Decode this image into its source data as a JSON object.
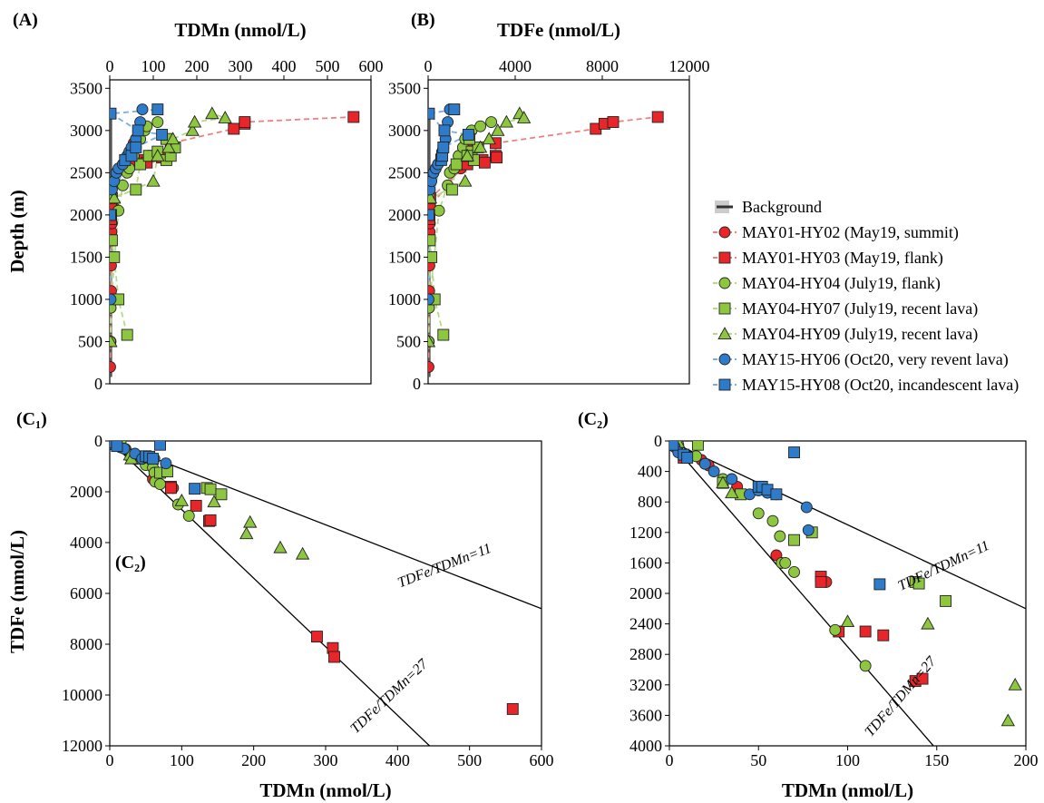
{
  "legend": {
    "background_label": "Background",
    "entries": [
      {
        "label": "MAY01-HY02 (May19, summit)",
        "color": "#e8262a",
        "line": "#f08080",
        "marker": "circle"
      },
      {
        "label": "MAY01-HY03 (May19, flank)",
        "color": "#e8262a",
        "line": "#f08080",
        "marker": "square"
      },
      {
        "label": "MAY04-HY04 (July19, flank)",
        "color": "#8dc63f",
        "line": "#b5d98a",
        "marker": "circle"
      },
      {
        "label": "MAY04-HY07 (July19, recent lava)",
        "color": "#8dc63f",
        "line": "#b5d98a",
        "marker": "square"
      },
      {
        "label": "MAY04-HY09 (July19, recent lava)",
        "color": "#8dc63f",
        "line": "#b5d98a",
        "marker": "triangle"
      },
      {
        "label": "MAY15-HY06 (Oct20, very revent lava)",
        "color": "#2e7bc9",
        "line": "#7aaee0",
        "marker": "circle"
      },
      {
        "label": "MAY15-HY08 (Oct20, incandescent lava)",
        "color": "#2e7bc9",
        "line": "#7aaee0",
        "marker": "square"
      }
    ]
  },
  "chart_data": [
    {
      "type": "scatter",
      "panel_label": "(A)",
      "xlabel": "TDMn (nmol/L)",
      "ylabel": "Depth (m)",
      "xlim": [
        0,
        600
      ],
      "ylim": [
        3600,
        0
      ],
      "xticks": [
        0,
        100,
        200,
        300,
        400,
        500,
        600
      ],
      "yticks": [
        0,
        500,
        1000,
        1500,
        2000,
        2500,
        3000,
        3500
      ],
      "series": [
        {
          "name": "MAY01-HY02 (May19, summit)",
          "x": [
            1,
            2,
            2,
            3,
            3,
            4,
            5,
            8,
            25,
            30,
            55,
            60
          ],
          "y": [
            200,
            500,
            900,
            1100,
            1400,
            1800,
            1900,
            2100,
            2550,
            2600,
            2850,
            2900
          ]
        },
        {
          "name": "MAY01-HY03 (May19, flank)",
          "x": [
            1,
            2,
            3,
            3,
            5,
            50,
            80,
            85,
            100,
            120,
            140,
            285,
            310,
            310,
            560
          ],
          "y": [
            1000,
            1700,
            1950,
            2100,
            2200,
            2600,
            2650,
            2620,
            2700,
            2680,
            2850,
            3020,
            3080,
            3100,
            3160
          ]
        },
        {
          "name": "MAY04-HY04 (July19, flank)",
          "x": [
            1,
            2,
            20,
            30,
            40,
            45,
            55,
            60,
            70,
            80,
            85,
            110
          ],
          "y": [
            500,
            900,
            2050,
            2350,
            2500,
            2550,
            2700,
            2800,
            2900,
            3000,
            3050,
            3100
          ]
        },
        {
          "name": "MAY04-HY07 (July19, recent lava)",
          "x": [
            40,
            20,
            10,
            5,
            3,
            2,
            60,
            70,
            90,
            110,
            130,
            140,
            150,
            130
          ],
          "y": [
            580,
            1000,
            1500,
            1700,
            2000,
            2200,
            2300,
            2600,
            2700,
            2750,
            2650,
            2700,
            2800,
            2900
          ]
        },
        {
          "name": "MAY04-HY09 (July19, recent lava)",
          "x": [
            2,
            10,
            100,
            110,
            135,
            145,
            190,
            195,
            235,
            265
          ],
          "y": [
            500,
            2200,
            2400,
            2700,
            2800,
            2900,
            3000,
            3100,
            3200,
            3150
          ]
        },
        {
          "name": "MAY15-HY06 (Oct20, very revent lava)",
          "x": [
            2,
            3,
            5,
            10,
            15,
            20,
            30,
            40,
            45,
            50,
            60,
            70,
            75
          ],
          "y": [
            1000,
            2000,
            2300,
            2400,
            2500,
            2550,
            2600,
            2700,
            2750,
            2800,
            2900,
            3100,
            3250
          ]
        },
        {
          "name": "MAY15-HY08 (Oct20, incandescent lava)",
          "x": [
            1,
            2,
            35,
            50,
            60,
            65,
            120,
            110
          ],
          "y": [
            2000,
            3200,
            2650,
            2700,
            2800,
            3000,
            2950,
            3250
          ]
        }
      ]
    },
    {
      "type": "scatter",
      "panel_label": "(B)",
      "xlabel": "TDFe (nmol/L)",
      "ylabel": "",
      "xlim": [
        0,
        12000
      ],
      "ylim": [
        3600,
        0
      ],
      "xticks": [
        0,
        4000,
        8000,
        12000
      ],
      "yticks": [
        0,
        500,
        1000,
        1500,
        2000,
        2500,
        3000,
        3500
      ],
      "series": [
        {
          "name": "MAY01-HY02 (May19, summit)",
          "x": [
            20,
            30,
            40,
            50,
            60,
            70,
            80,
            100,
            1500,
            1600,
            1800,
            1850
          ],
          "y": [
            200,
            500,
            900,
            1100,
            1400,
            1800,
            1900,
            2100,
            2550,
            2600,
            2850,
            2900
          ]
        },
        {
          "name": "MAY01-HY03 (May19, flank)",
          "x": [
            20,
            40,
            60,
            80,
            100,
            1800,
            2500,
            2600,
            3100,
            3150,
            3100,
            7700,
            8100,
            8500,
            10550
          ],
          "y": [
            1000,
            1700,
            1950,
            2100,
            2200,
            2600,
            2650,
            2620,
            2700,
            2680,
            2850,
            3020,
            3080,
            3100,
            3160
          ]
        },
        {
          "name": "MAY04-HY04 (July19, flank)",
          "x": [
            20,
            40,
            500,
            900,
            1000,
            1200,
            1400,
            1600,
            1700,
            2000,
            2400,
            2900
          ],
          "y": [
            500,
            900,
            2050,
            2350,
            2500,
            2550,
            2700,
            2800,
            2900,
            3000,
            3050,
            3100
          ]
        },
        {
          "name": "MAY04-HY07 (July19, recent lava)",
          "x": [
            700,
            300,
            150,
            80,
            50,
            30,
            1100,
            1300,
            1900,
            2000,
            2100,
            1800,
            2300,
            1900
          ],
          "y": [
            580,
            1000,
            1500,
            1700,
            2000,
            2200,
            2300,
            2600,
            2700,
            2750,
            2650,
            2700,
            2800,
            2900
          ]
        },
        {
          "name": "MAY04-HY09 (July19, recent lava)",
          "x": [
            20,
            100,
            1700,
            1800,
            2400,
            2800,
            3200,
            3600,
            4200,
            4400
          ],
          "y": [
            500,
            2200,
            2400,
            2700,
            2800,
            2900,
            3000,
            3100,
            3200,
            3150
          ]
        },
        {
          "name": "MAY15-HY06 (Oct20, very revent lava)",
          "x": [
            20,
            40,
            80,
            150,
            250,
            350,
            450,
            600,
            650,
            700,
            800,
            900,
            1000
          ],
          "y": [
            1000,
            2000,
            2300,
            2400,
            2500,
            2550,
            2600,
            2700,
            2750,
            2800,
            2900,
            3100,
            3250
          ]
        },
        {
          "name": "MAY15-HY08 (Oct20, incandescent lava)",
          "x": [
            20,
            40,
            600,
            650,
            700,
            750,
            1850,
            1200
          ],
          "y": [
            2000,
            3200,
            2650,
            2700,
            2800,
            3000,
            2950,
            3250
          ]
        }
      ]
    },
    {
      "type": "scatter",
      "panel_label": "(C₁)",
      "inset_label": "(C₂)",
      "xlabel": "TDMn (nmol/L)",
      "ylabel": "TDFe (nmol/L)",
      "xlim": [
        0,
        600
      ],
      "ylim": [
        0,
        12000
      ],
      "xticks": [
        0,
        100,
        200,
        300,
        400,
        500,
        600
      ],
      "yticks": [
        0,
        2000,
        4000,
        6000,
        8000,
        10000,
        12000
      ],
      "reference_lines": [
        {
          "label": "TDFe/TDMn=27",
          "slope": 27
        },
        {
          "label": "TDFe/TDMn=11",
          "slope": 11
        }
      ],
      "inset_box": {
        "x": [
          0,
          200
        ],
        "y": [
          0,
          4000
        ]
      },
      "series": [
        {
          "name": "MAY01-HY02 (May19, summit)",
          "x": [
            1,
            3,
            5,
            15,
            20,
            22,
            35,
            55,
            60,
            85,
            88
          ],
          "y": [
            20,
            60,
            100,
            250,
            300,
            320,
            600,
            700,
            1500,
            1800,
            1850
          ]
        },
        {
          "name": "MAY01-HY03 (May19, flank)",
          "x": [
            2,
            5,
            85,
            85,
            120,
            138,
            140,
            288,
            310,
            312,
            560
          ],
          "y": [
            50,
            120,
            1800,
            1850,
            2550,
            3150,
            3120,
            7700,
            8150,
            8500,
            10550
          ]
        },
        {
          "name": "MAY04-HY04 (July19, flank)",
          "x": [
            5,
            15,
            35,
            50,
            60,
            62,
            63,
            70,
            95,
            110
          ],
          "y": [
            50,
            250,
            650,
            950,
            1050,
            1250,
            1600,
            1700,
            2500,
            2950
          ]
        },
        {
          "name": "MAY04-HY07 (July19, recent lava)",
          "x": [
            15,
            30,
            40,
            70,
            80,
            135,
            140,
            155
          ],
          "y": [
            50,
            550,
            700,
            1250,
            1200,
            1850,
            1900,
            2100
          ]
        },
        {
          "name": "MAY04-HY09 (July19, recent lava)",
          "x": [
            10,
            28,
            30,
            100,
            145,
            190,
            195,
            237,
            268
          ],
          "y": [
            20,
            550,
            700,
            2350,
            2400,
            3650,
            3200,
            4200,
            4450
          ]
        },
        {
          "name": "MAY15-HY06 (Oct20, very revent lava)",
          "x": [
            1,
            5,
            10,
            20,
            35,
            45,
            50,
            55,
            62,
            78
          ],
          "y": [
            20,
            150,
            200,
            300,
            500,
            700,
            650,
            680,
            700,
            880
          ]
        },
        {
          "name": "MAY15-HY08 (Oct20, incandescent lava)",
          "x": [
            2,
            10,
            50,
            55,
            60,
            70,
            118
          ],
          "y": [
            50,
            200,
            600,
            620,
            700,
            150,
            1880
          ]
        }
      ]
    },
    {
      "type": "scatter",
      "panel_label": "(C₂)",
      "xlabel": "TDMn (nmol/L)",
      "ylabel": "",
      "xlim": [
        0,
        200
      ],
      "ylim": [
        0,
        4000
      ],
      "xticks": [
        0,
        50,
        100,
        150,
        200
      ],
      "yticks": [
        0,
        400,
        800,
        1200,
        1600,
        2000,
        2400,
        2800,
        3200,
        3600,
        4000
      ],
      "reference_lines": [
        {
          "label": "TDFe/TDMn=27",
          "slope": 27
        },
        {
          "label": "TDFe/TDMn=11",
          "slope": 11
        }
      ],
      "series": [
        {
          "name": "MAY01-HY02 (May19, summit)",
          "x": [
            1,
            2,
            3,
            4,
            18,
            20,
            22,
            38,
            60,
            85,
            88
          ],
          "y": [
            20,
            40,
            60,
            80,
            250,
            300,
            320,
            600,
            1500,
            1800,
            1850
          ]
        },
        {
          "name": "MAY01-HY03 (May19, flank)",
          "x": [
            2,
            8,
            85,
            85,
            95,
            110,
            120,
            138,
            142
          ],
          "y": [
            50,
            220,
            1780,
            1850,
            2500,
            2500,
            2550,
            3150,
            3120
          ]
        },
        {
          "name": "MAY04-HY04 (July19, flank)",
          "x": [
            5,
            15,
            30,
            50,
            58,
            62,
            63,
            65,
            70,
            93,
            110
          ],
          "y": [
            50,
            200,
            500,
            950,
            1050,
            1250,
            1600,
            1600,
            1720,
            2480,
            2950
          ]
        },
        {
          "name": "MAY04-HY07 (July19, recent lava)",
          "x": [
            16,
            30,
            40,
            70,
            80,
            138,
            140,
            155
          ],
          "y": [
            50,
            550,
            700,
            1300,
            1200,
            1850,
            1870,
            2100
          ]
        },
        {
          "name": "MAY04-HY09 (July19, recent lava)",
          "x": [
            5,
            30,
            35,
            100,
            145,
            190,
            194
          ],
          "y": [
            20,
            550,
            680,
            2370,
            2400,
            3670,
            3200
          ]
        },
        {
          "name": "MAY15-HY06 (Oct20, very revent lava)",
          "x": [
            1,
            3,
            5,
            10,
            20,
            25,
            35,
            45,
            50,
            55,
            60,
            77,
            78
          ],
          "y": [
            20,
            80,
            150,
            200,
            300,
            400,
            500,
            700,
            650,
            680,
            700,
            870,
            1170
          ]
        },
        {
          "name": "MAY15-HY08 (Oct20, incandescent lava)",
          "x": [
            2,
            8,
            10,
            50,
            52,
            55,
            60,
            70,
            118
          ],
          "y": [
            50,
            180,
            220,
            600,
            600,
            640,
            700,
            150,
            1880
          ]
        }
      ]
    }
  ]
}
